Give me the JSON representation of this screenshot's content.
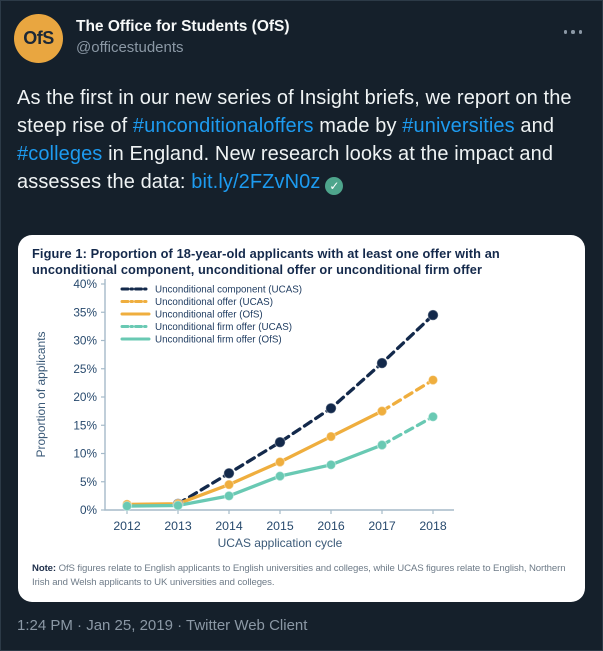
{
  "header": {
    "display_name": "The Office for Students (OfS)",
    "handle": "@officestudents",
    "avatar_text": "OfS"
  },
  "tweet": {
    "segments": [
      {
        "type": "text",
        "text": "As the first in our new series of Insight briefs, we report on the steep rise of "
      },
      {
        "type": "hashtag",
        "text": "#unconditionaloffers"
      },
      {
        "type": "text",
        "text": " made by "
      },
      {
        "type": "hashtag",
        "text": "#universities"
      },
      {
        "type": "text",
        "text": " and "
      },
      {
        "type": "hashtag",
        "text": "#colleges"
      },
      {
        "type": "text",
        "text": " in England. New research looks at the impact and assesses the data: "
      },
      {
        "type": "link",
        "text": "bit.ly/2FZvN0z"
      },
      {
        "type": "emoji",
        "text": "✓"
      }
    ]
  },
  "chart_card": {
    "note_label": "Note:",
    "note_text": " OfS figures relate to English applicants to English universities and colleges, while UCAS figures relate to English, Northern Irish and Welsh applicants to UK universities and colleges."
  },
  "chart_data": {
    "type": "line",
    "title": "Figure 1: Proportion of 18-year-old applicants with at least one offer with an unconditional component, unconditional offer or unconditional firm offer",
    "x": [
      2012,
      2013,
      2014,
      2015,
      2016,
      2017,
      2018
    ],
    "xlabel": "UCAS application cycle",
    "ylabel": "Proportion of applicants",
    "ylim": [
      0,
      40
    ],
    "yticks": [
      0,
      5,
      10,
      15,
      20,
      25,
      30,
      35,
      40
    ],
    "ytick_suffix": "%",
    "grid": false,
    "legend_position": "top-left-inside",
    "series": [
      {
        "name": "Unconditional component (UCAS)",
        "color": "#13294b",
        "style": "dashed",
        "values": [
          null,
          1.1,
          6.5,
          12,
          18,
          26,
          34.5
        ]
      },
      {
        "name": "Unconditional offer (UCAS)",
        "color": "#efae3e",
        "style": "dashed",
        "values": [
          null,
          null,
          null,
          null,
          null,
          17.5,
          23
        ]
      },
      {
        "name": "Unconditional offer (OfS)",
        "color": "#efae3e",
        "style": "solid",
        "values": [
          1,
          1.1,
          4.5,
          8.5,
          13,
          17.5,
          null
        ]
      },
      {
        "name": "Unconditional firm offer (UCAS)",
        "color": "#69c9b3",
        "style": "dashed",
        "values": [
          null,
          null,
          null,
          null,
          null,
          11.5,
          16.5
        ]
      },
      {
        "name": "Unconditional firm offer (OfS)",
        "color": "#69c9b3",
        "style": "solid",
        "values": [
          0.7,
          0.8,
          2.5,
          6,
          8,
          11.5,
          null
        ]
      }
    ]
  },
  "footer": {
    "timestamp": "1:24 PM · Jan 25, 2019 · Twitter Web Client"
  },
  "colors": {
    "background": "#15202b",
    "text_primary": "#eff3f4",
    "text_secondary": "#8b98a5",
    "link_blue": "#1d9bf0",
    "card_background": "#ffffff",
    "brand_navy": "#13294b",
    "brand_gold": "#e9a640",
    "series_navy": "#13294b",
    "series_yellow": "#efae3e",
    "series_teal": "#69c9b3"
  }
}
